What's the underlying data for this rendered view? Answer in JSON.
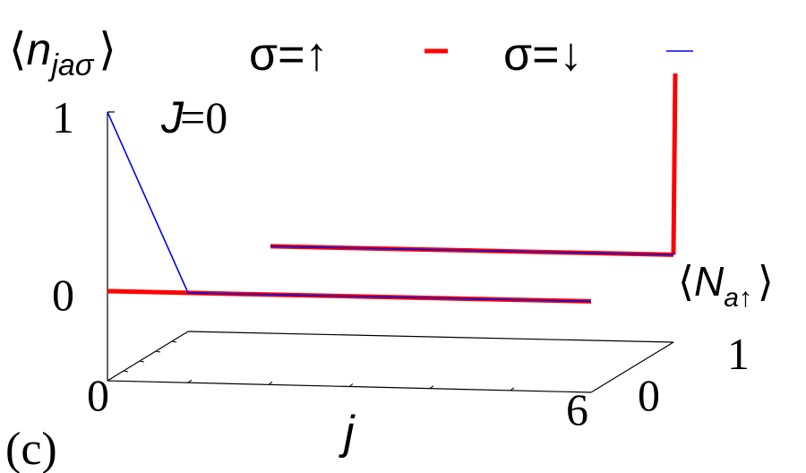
{
  "chart_data": {
    "type": "line",
    "view": "3d-perspective",
    "panel_label": "(c)",
    "annotation": {
      "var": "J",
      "eq": "=0"
    },
    "zlabel": {
      "open": "⟨",
      "var": "n",
      "sub": "jaσ",
      "close": "⟩"
    },
    "xlabel": "j",
    "ylabel": {
      "open": "⟨",
      "var": "N",
      "sub": "a↑",
      "close": "⟩"
    },
    "xlim": [
      0,
      6
    ],
    "ylim": [
      0,
      1
    ],
    "zlim": [
      0,
      1
    ],
    "x_ticks": [
      "0",
      "6"
    ],
    "y_ticks": [
      "0",
      "1"
    ],
    "z_ticks": [
      "0",
      "1"
    ],
    "legend": [
      {
        "label": "σ=↑",
        "color": "#ff0000"
      },
      {
        "label": "σ=↓",
        "color": "#0000ee"
      }
    ],
    "series": [
      {
        "name": "σ=↑",
        "color": "#ff0000",
        "lines": [
          {
            "N": 0,
            "points": [
              [
                0,
                0
              ],
              [
                1,
                0
              ],
              [
                6,
                0
              ]
            ]
          },
          {
            "N": 1,
            "points": [
              [
                0,
                0
              ],
              [
                6,
                0
              ]
            ]
          },
          {
            "along_N_at_j": 6,
            "points": [
              [
                1,
                0
              ],
              [
                1,
                1
              ]
            ]
          }
        ]
      },
      {
        "name": "σ=↓",
        "color": "#0000ee",
        "lines": [
          {
            "N": 0,
            "points": [
              [
                0,
                1
              ],
              [
                1,
                0
              ],
              [
                6,
                0
              ]
            ]
          },
          {
            "N": 1,
            "points": [
              [
                0,
                0
              ],
              [
                6,
                0
              ]
            ]
          },
          {
            "along_N_at_j": 6,
            "points": [
              [
                1,
                0
              ],
              [
                1,
                0
              ]
            ]
          }
        ]
      }
    ]
  }
}
